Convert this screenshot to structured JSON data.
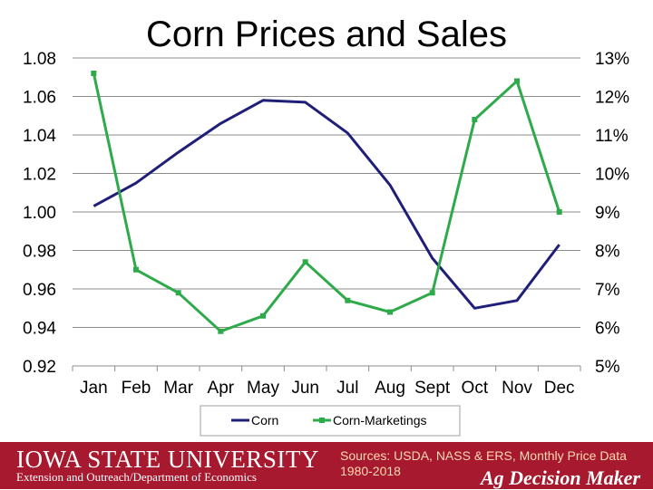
{
  "chart_data": {
    "type": "line",
    "title": "Corn Prices and Sales",
    "categories": [
      "Jan",
      "Feb",
      "Mar",
      "Apr",
      "May",
      "Jun",
      "Jul",
      "Aug",
      "Sept",
      "Oct",
      "Nov",
      "Dec"
    ],
    "y_left": {
      "range": [
        0.92,
        1.08
      ],
      "ticks": [
        "1.08",
        "1.06",
        "1.04",
        "1.02",
        "1.00",
        "0.98",
        "0.96",
        "0.94",
        "0.92"
      ]
    },
    "y_right": {
      "range": [
        5,
        13
      ],
      "ticks": [
        "13%",
        "12%",
        "11%",
        "10%",
        "9%",
        "8%",
        "7%",
        "6%",
        "5%"
      ]
    },
    "grid": true,
    "legend_position": "bottom",
    "series": [
      {
        "name": "Corn",
        "axis": "left",
        "color": "#1f1f7a",
        "marker": "none",
        "values": [
          1.003,
          1.015,
          1.031,
          1.046,
          1.058,
          1.057,
          1.041,
          1.014,
          0.976,
          0.95,
          0.954,
          0.983
        ]
      },
      {
        "name": "Corn-Marketings",
        "axis": "right",
        "color": "#2eaa4a",
        "marker": "square",
        "values": [
          12.6,
          7.5,
          6.9,
          5.9,
          6.3,
          7.7,
          6.7,
          6.4,
          6.9,
          11.4,
          12.4,
          9.0
        ]
      }
    ]
  },
  "footer": {
    "university": "IOWA STATE UNIVERSITY",
    "department": "Extension and Outreach/Department of Economics",
    "sources": "Sources: USDA, NASS & ERS, Monthly Price Data 1980-2018",
    "program": "Ag Decision Maker"
  }
}
